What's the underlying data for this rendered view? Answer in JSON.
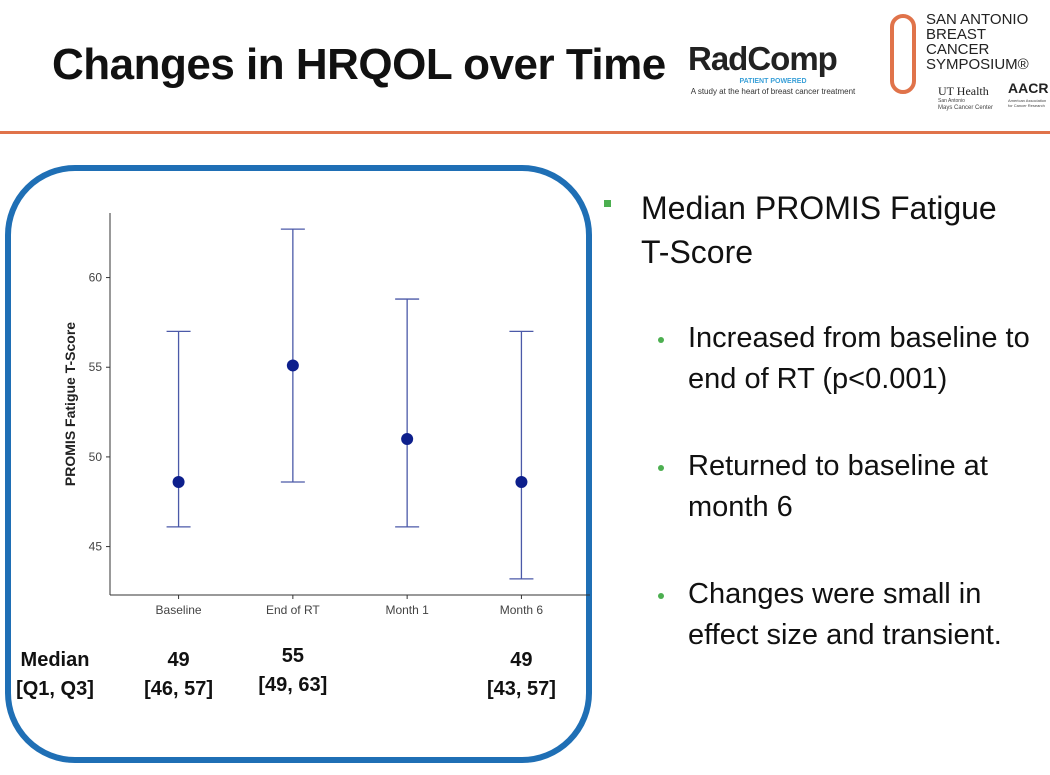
{
  "header": {
    "title": "Changes in HRQOL over Time",
    "logo_radcomp": {
      "name": "RadComp",
      "tagline": "PATIENT POWERED",
      "caption": "A study at the heart of breast cancer treatment"
    },
    "logo_sabcs": {
      "lines": [
        "SAN ANTONIO",
        "BREAST CANCER",
        "SYMPOSIUM®"
      ],
      "partner1": "UT Health",
      "partner1_sub": [
        "San Antonio",
        "Mays Cancer Center"
      ],
      "partner2": "AACR",
      "partner2_sub": "American Association for Cancer Research"
    }
  },
  "chart_data": {
    "type": "errorbar",
    "y_label": "PROMIS Fatigue T-Score",
    "categories": [
      "Baseline",
      "End of RT",
      "Month 1",
      "Month 6"
    ],
    "series": [
      {
        "color": "#0d1f8c",
        "error_color": "#4b59a8",
        "values": [
          48.6,
          55.1,
          51.0,
          48.6
        ],
        "low": [
          46.1,
          48.6,
          46.1,
          43.2
        ],
        "high": [
          57.0,
          62.7,
          58.8,
          57.0
        ]
      }
    ],
    "ylim": [
      42.3,
      63.6
    ],
    "yticks": [
      45,
      50,
      55,
      60
    ],
    "grid": false
  },
  "median_table": {
    "row_label": [
      "Median",
      "[Q1, Q3]"
    ],
    "columns": [
      {
        "median": "49",
        "iqr": "[46, 57]"
      },
      {
        "median": "55",
        "iqr": "[49, 63]"
      },
      null,
      {
        "median": "49",
        "iqr": "[43, 57]"
      }
    ]
  },
  "bullets": {
    "main": "Median PROMIS Fatigue T-Score",
    "sub": [
      "Increased from baseline to end of RT (p<0.001)",
      "Returned to baseline at month 6",
      "Changes were small in effect size and transient."
    ]
  }
}
